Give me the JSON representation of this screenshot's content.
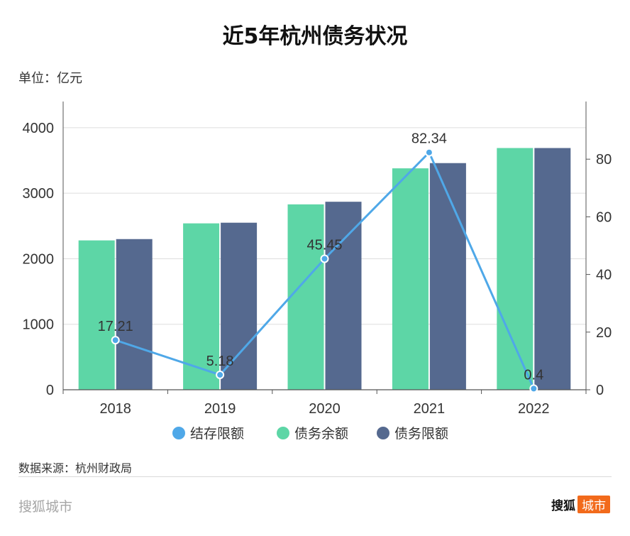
{
  "header": {
    "title": "近5年杭州债务状况",
    "unit": "单位：亿元"
  },
  "footer": {
    "source": "数据来源：杭州财政局",
    "brand_left": "搜狐城市",
    "logo_text_a": "搜狐",
    "logo_text_b": "城市",
    "logo_color": "#f26a1b"
  },
  "chart_data": {
    "type": "bar",
    "categories": [
      "2018",
      "2019",
      "2020",
      "2021",
      "2022"
    ],
    "series": [
      {
        "name": "债务余额",
        "type": "bar",
        "axis": "left",
        "color": "#5dd6a6",
        "values": [
          2280,
          2540,
          2830,
          3380,
          3690
        ]
      },
      {
        "name": "债务限额",
        "type": "bar",
        "axis": "left",
        "color": "#55698f",
        "values": [
          2300,
          2550,
          2870,
          3460,
          3690
        ]
      },
      {
        "name": "结存限额",
        "type": "line",
        "axis": "right",
        "color": "#4fa8e8",
        "values": [
          17.21,
          5.18,
          45.45,
          82.34,
          0.4
        ],
        "labels": [
          "17.21",
          "5.18",
          "45.45",
          "82.34",
          "0.4"
        ]
      }
    ],
    "y_left": {
      "min": 0,
      "max": 4400,
      "ticks": [
        "0",
        "1000",
        "2000",
        "3000",
        "4000"
      ]
    },
    "y_right": {
      "min": 0,
      "max": 100,
      "ticks": [
        "0",
        "20",
        "40",
        "60",
        "80"
      ]
    },
    "legend_order": [
      "结存限额",
      "债务余额",
      "债务限额"
    ],
    "legend_position": "bottom",
    "grid": true
  }
}
